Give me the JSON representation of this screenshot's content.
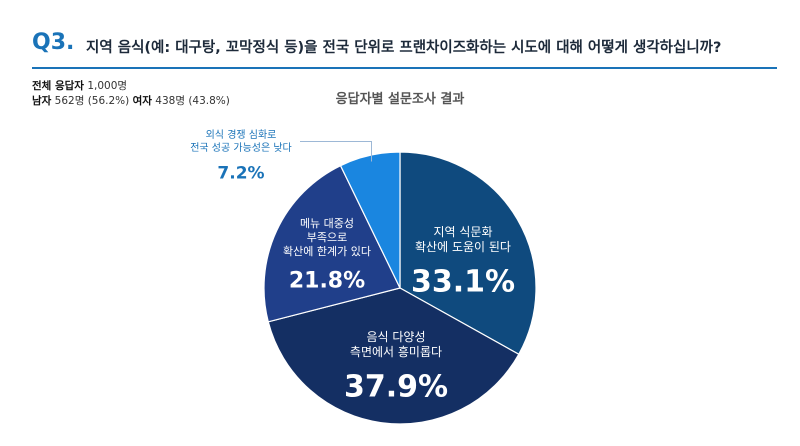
{
  "question": {
    "number": "Q3.",
    "text": "지역 음식(예: 대구탕, 꼬막정식 등)을 전국 단위로 프랜차이즈화하는 시도에 대해 어떻게 생각하십니까?"
  },
  "stats": {
    "total_label": "전체 응답자",
    "total_value": "1,000명",
    "male_label": "남자",
    "male_value": "562명 (56.2%)",
    "female_label": "여자",
    "female_value": "438명 (43.8%)"
  },
  "colors": {
    "accent": "#1a73b8",
    "slices": [
      "#0f4a7e",
      "#142f63",
      "#203f8a",
      "#1a86e0"
    ]
  },
  "chart_data": {
    "type": "pie",
    "title": "응답자별 설문조사 결과",
    "slices": [
      {
        "label_lines": [
          "지역 식문화",
          "확산에 도움이 된다"
        ],
        "value": 33.1,
        "value_label": "33.1%"
      },
      {
        "label_lines": [
          "음식 다양성",
          "측면에서 흥미롭다"
        ],
        "value": 37.9,
        "value_label": "37.9%"
      },
      {
        "label_lines": [
          "메뉴 대중성",
          "부족으로",
          "확산에 한계가 있다"
        ],
        "value": 21.8,
        "value_label": "21.8%"
      },
      {
        "label_lines": [
          "외식 경쟁 심화로",
          "전국 성공 가능성은 낮다"
        ],
        "value": 7.2,
        "value_label": "7.2%"
      }
    ],
    "start": "12 o'clock",
    "direction": "clockwise"
  }
}
